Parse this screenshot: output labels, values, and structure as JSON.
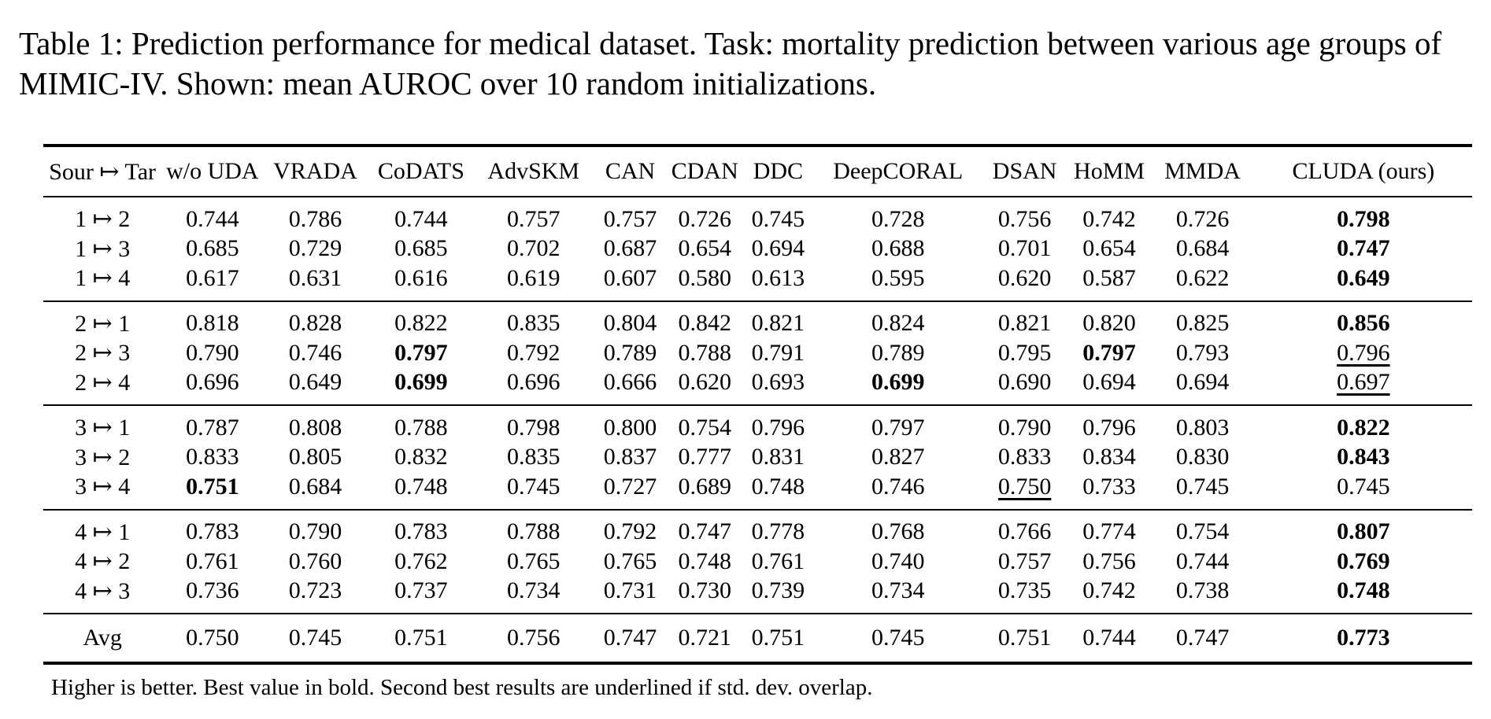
{
  "caption": "Table 1: Prediction performance for medical dataset. Task: mortality prediction between various age groups of MIMIC-IV. Shown: mean AUROC over 10 random initializations.",
  "headers": [
    "Sour ↦ Tar",
    "w/o UDA",
    "VRADA",
    "CoDATS",
    "AdvSKM",
    "CAN",
    "CDAN",
    "DDC",
    "DeepCORAL",
    "DSAN",
    "HoMM",
    "MMDA",
    "CLUDA (ours)"
  ],
  "groups": [
    [
      [
        "1 ↦ 2",
        "0.744",
        "0.786",
        "0.744",
        "0.757",
        "0.757",
        "0.726",
        "0.745",
        "0.728",
        "0.756",
        "0.742",
        "0.726",
        "0.798"
      ],
      [
        "1 ↦ 3",
        "0.685",
        "0.729",
        "0.685",
        "0.702",
        "0.687",
        "0.654",
        "0.694",
        "0.688",
        "0.701",
        "0.654",
        "0.684",
        "0.747"
      ],
      [
        "1 ↦ 4",
        "0.617",
        "0.631",
        "0.616",
        "0.619",
        "0.607",
        "0.580",
        "0.613",
        "0.595",
        "0.620",
        "0.587",
        "0.622",
        "0.649"
      ]
    ],
    [
      [
        "2 ↦ 1",
        "0.818",
        "0.828",
        "0.822",
        "0.835",
        "0.804",
        "0.842",
        "0.821",
        "0.824",
        "0.821",
        "0.820",
        "0.825",
        "0.856"
      ],
      [
        "2 ↦ 3",
        "0.790",
        "0.746",
        "0.797",
        "0.792",
        "0.789",
        "0.788",
        "0.791",
        "0.789",
        "0.795",
        "0.797",
        "0.793",
        "0.796"
      ],
      [
        "2 ↦ 4",
        "0.696",
        "0.649",
        "0.699",
        "0.696",
        "0.666",
        "0.620",
        "0.693",
        "0.699",
        "0.690",
        "0.694",
        "0.694",
        "0.697"
      ]
    ],
    [
      [
        "3 ↦ 1",
        "0.787",
        "0.808",
        "0.788",
        "0.798",
        "0.800",
        "0.754",
        "0.796",
        "0.797",
        "0.790",
        "0.796",
        "0.803",
        "0.822"
      ],
      [
        "3 ↦ 2",
        "0.833",
        "0.805",
        "0.832",
        "0.835",
        "0.837",
        "0.777",
        "0.831",
        "0.827",
        "0.833",
        "0.834",
        "0.830",
        "0.843"
      ],
      [
        "3 ↦ 4",
        "0.751",
        "0.684",
        "0.748",
        "0.745",
        "0.727",
        "0.689",
        "0.748",
        "0.746",
        "0.750",
        "0.733",
        "0.745",
        "0.745"
      ]
    ],
    [
      [
        "4 ↦ 1",
        "0.783",
        "0.790",
        "0.783",
        "0.788",
        "0.792",
        "0.747",
        "0.778",
        "0.768",
        "0.766",
        "0.774",
        "0.754",
        "0.807"
      ],
      [
        "4 ↦ 2",
        "0.761",
        "0.760",
        "0.762",
        "0.765",
        "0.765",
        "0.748",
        "0.761",
        "0.740",
        "0.757",
        "0.756",
        "0.744",
        "0.769"
      ],
      [
        "4 ↦ 3",
        "0.736",
        "0.723",
        "0.737",
        "0.734",
        "0.731",
        "0.730",
        "0.739",
        "0.734",
        "0.735",
        "0.742",
        "0.738",
        "0.748"
      ]
    ]
  ],
  "avg": [
    "Avg",
    "0.750",
    "0.745",
    "0.751",
    "0.756",
    "0.747",
    "0.721",
    "0.751",
    "0.745",
    "0.751",
    "0.744",
    "0.747",
    "0.773"
  ],
  "bold_cells": [
    [
      0,
      0,
      12
    ],
    [
      0,
      1,
      12
    ],
    [
      0,
      2,
      12
    ],
    [
      1,
      0,
      12
    ],
    [
      1,
      1,
      3
    ],
    [
      1,
      1,
      10
    ],
    [
      1,
      2,
      3
    ],
    [
      1,
      2,
      8
    ],
    [
      2,
      0,
      12
    ],
    [
      2,
      1,
      12
    ],
    [
      2,
      2,
      1
    ],
    [
      3,
      0,
      12
    ],
    [
      3,
      1,
      12
    ],
    [
      3,
      2,
      12
    ]
  ],
  "underlined_cells": [
    [
      1,
      1,
      12
    ],
    [
      1,
      2,
      12
    ],
    [
      2,
      2,
      9
    ]
  ],
  "avg_bold": [
    12
  ],
  "footnote": "Higher is better. Best value in bold. Second best results are underlined if std. dev. overlap."
}
